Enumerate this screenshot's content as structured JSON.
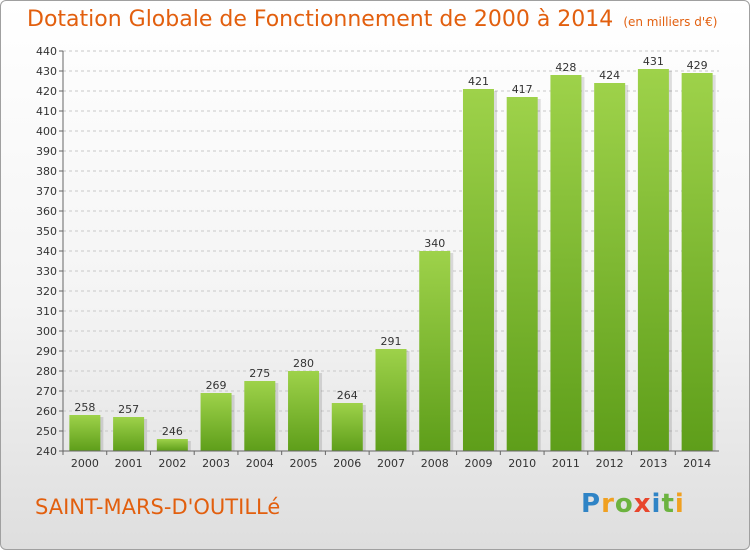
{
  "header": {
    "title": "Dotation Globale de Fonctionnement de 2000 à 2014",
    "subtitle": "(en milliers d'€)"
  },
  "footer": {
    "commune": "SAINT-MARS-D'OUTILLé",
    "logo_letters": [
      "P",
      "r",
      "o",
      "x",
      "i",
      "t",
      "i"
    ],
    "logo_colors": [
      "#2f84c6",
      "#f0a020",
      "#6cb33f",
      "#e8452c",
      "#2f84c6",
      "#6cb33f",
      "#f0a020"
    ]
  },
  "chart_data": {
    "type": "bar",
    "categories": [
      "2000",
      "2001",
      "2002",
      "2003",
      "2004",
      "2005",
      "2006",
      "2007",
      "2008",
      "2009",
      "2010",
      "2011",
      "2012",
      "2013",
      "2014"
    ],
    "values": [
      258,
      257,
      246,
      269,
      275,
      280,
      264,
      291,
      340,
      421,
      417,
      428,
      424,
      431,
      429
    ],
    "title": "Dotation Globale de Fonctionnement de 2000 à 2014",
    "subtitle": "(en milliers d'€)",
    "xlabel": "",
    "ylabel": "",
    "ylim": [
      240,
      440
    ],
    "ytick_step": 10,
    "grid": "horizontal",
    "bar_color_top": "#9ed24a",
    "bar_color_bottom": "#5e9e1a"
  }
}
